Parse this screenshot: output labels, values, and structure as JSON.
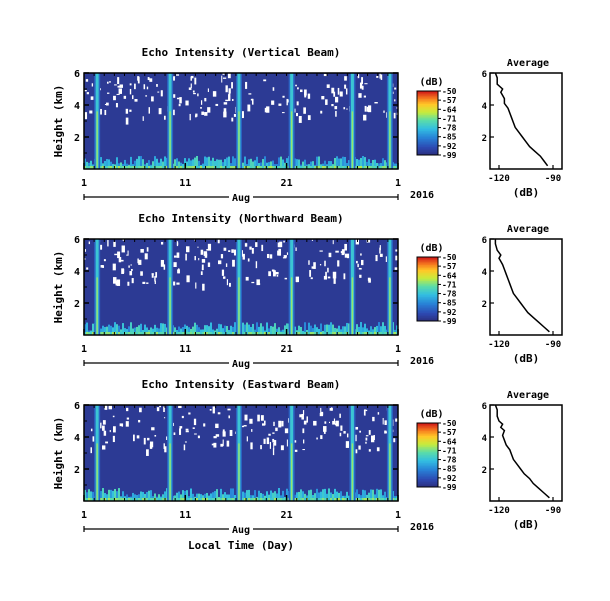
{
  "chart_data": [
    {
      "type": "heatmap",
      "title": "Echo Intensity (Vertical Beam)",
      "ylabel": "Height (km)",
      "y_ticks": [
        "6",
        "4",
        "2"
      ],
      "ylim": [
        0,
        6
      ],
      "x_ticks": [
        "1",
        "11",
        "21",
        "1"
      ],
      "x_ticks_days": [
        1,
        11,
        21,
        32
      ],
      "xlim_days": [
        1,
        32
      ],
      "month_label": "Aug",
      "year_label": "2016",
      "xlabel": "",
      "colorbar": {
        "unit": "(dB)",
        "ticks": [
          "-50",
          "-57",
          "-64",
          "-71",
          "-78",
          "-85",
          "-92",
          "-99"
        ],
        "range": [
          -99,
          -50
        ]
      },
      "convective_events_day": [
        2.3,
        9.5,
        16.3,
        21.5,
        27.5,
        31.2
      ],
      "average": {
        "title": "Average",
        "xlabel": "(dB)",
        "x_ticks": [
          "-120",
          "-90"
        ],
        "xlim": [
          -125,
          -85
        ],
        "y_ticks": [
          "6",
          "4",
          "2"
        ],
        "ylim": [
          0,
          6
        ],
        "profile": [
          [
            -93,
            0.2
          ],
          [
            -95,
            0.5
          ],
          [
            -97,
            0.8
          ],
          [
            -100,
            1.1
          ],
          [
            -103,
            1.4
          ],
          [
            -105,
            1.7
          ],
          [
            -107,
            2.0
          ],
          [
            -109,
            2.3
          ],
          [
            -111,
            2.6
          ],
          [
            -112,
            2.9
          ],
          [
            -113,
            3.2
          ],
          [
            -114,
            3.5
          ],
          [
            -115,
            3.8
          ],
          [
            -117,
            4.1
          ],
          [
            -117,
            4.4
          ],
          [
            -118,
            4.6
          ],
          [
            -119,
            4.8
          ],
          [
            -118,
            5.0
          ],
          [
            -121,
            5.3
          ],
          [
            -121,
            5.7
          ],
          [
            -122,
            6.0
          ]
        ]
      }
    },
    {
      "type": "heatmap",
      "title": "Echo Intensity (Northward Beam)",
      "ylabel": "Height (km)",
      "y_ticks": [
        "6",
        "4",
        "2"
      ],
      "ylim": [
        0,
        6
      ],
      "x_ticks": [
        "1",
        "11",
        "21",
        "1"
      ],
      "x_ticks_days": [
        1,
        11,
        21,
        32
      ],
      "xlim_days": [
        1,
        32
      ],
      "month_label": "Aug",
      "year_label": "2016",
      "xlabel": "",
      "colorbar": {
        "unit": "(dB)",
        "ticks": [
          "-50",
          "-57",
          "-64",
          "-71",
          "-78",
          "-85",
          "-92",
          "-99"
        ],
        "range": [
          -99,
          -50
        ]
      },
      "convective_events_day": [
        2.3,
        9.5,
        16.3,
        21.5,
        27.5,
        31.2
      ],
      "average": {
        "title": "Average",
        "xlabel": "(dB)",
        "x_ticks": [
          "-120",
          "-90"
        ],
        "xlim": [
          -125,
          -85
        ],
        "y_ticks": [
          "6",
          "4",
          "2"
        ],
        "ylim": [
          0,
          6
        ],
        "profile": [
          [
            -92,
            0.2
          ],
          [
            -95,
            0.5
          ],
          [
            -98,
            0.8
          ],
          [
            -101,
            1.1
          ],
          [
            -104,
            1.4
          ],
          [
            -106,
            1.7
          ],
          [
            -108,
            2.0
          ],
          [
            -110,
            2.3
          ],
          [
            -112,
            2.6
          ],
          [
            -113,
            2.9
          ],
          [
            -114,
            3.2
          ],
          [
            -115,
            3.5
          ],
          [
            -116,
            3.8
          ],
          [
            -117,
            4.1
          ],
          [
            -118,
            4.4
          ],
          [
            -119,
            4.6
          ],
          [
            -120,
            4.8
          ],
          [
            -119,
            5.0
          ],
          [
            -121,
            5.3
          ],
          [
            -122,
            5.7
          ],
          [
            -122,
            6.0
          ]
        ]
      }
    },
    {
      "type": "heatmap",
      "title": "Echo Intensity (Eastward Beam)",
      "ylabel": "Height (km)",
      "y_ticks": [
        "6",
        "4",
        "2"
      ],
      "ylim": [
        0,
        6
      ],
      "x_ticks": [
        "1",
        "11",
        "21",
        "1"
      ],
      "x_ticks_days": [
        1,
        11,
        21,
        32
      ],
      "xlim_days": [
        1,
        32
      ],
      "month_label": "Aug",
      "year_label": "2016",
      "xlabel": "Local Time (Day)",
      "colorbar": {
        "unit": "(dB)",
        "ticks": [
          "-50",
          "-57",
          "-64",
          "-71",
          "-78",
          "-85",
          "-92",
          "-99"
        ],
        "range": [
          -99,
          -50
        ]
      },
      "convective_events_day": [
        2.3,
        9.5,
        16.3,
        21.5,
        27.5,
        31.2
      ],
      "average": {
        "title": "Average",
        "xlabel": "(dB)",
        "x_ticks": [
          "-120",
          "-90"
        ],
        "xlim": [
          -125,
          -85
        ],
        "y_ticks": [
          "6",
          "4",
          "2"
        ],
        "ylim": [
          0,
          6
        ],
        "profile": [
          [
            -92,
            0.2
          ],
          [
            -95,
            0.5
          ],
          [
            -98,
            0.8
          ],
          [
            -101,
            1.1
          ],
          [
            -103,
            1.4
          ],
          [
            -106,
            1.7
          ],
          [
            -108,
            2.0
          ],
          [
            -110,
            2.3
          ],
          [
            -112,
            2.6
          ],
          [
            -113,
            2.9
          ],
          [
            -114,
            3.2
          ],
          [
            -116,
            3.5
          ],
          [
            -117,
            3.8
          ],
          [
            -118,
            4.1
          ],
          [
            -117,
            4.4
          ],
          [
            -119,
            4.6
          ],
          [
            -118,
            4.8
          ],
          [
            -120,
            5.0
          ],
          [
            -121,
            5.3
          ],
          [
            -121,
            5.7
          ],
          [
            -122,
            6.0
          ]
        ]
      }
    }
  ]
}
